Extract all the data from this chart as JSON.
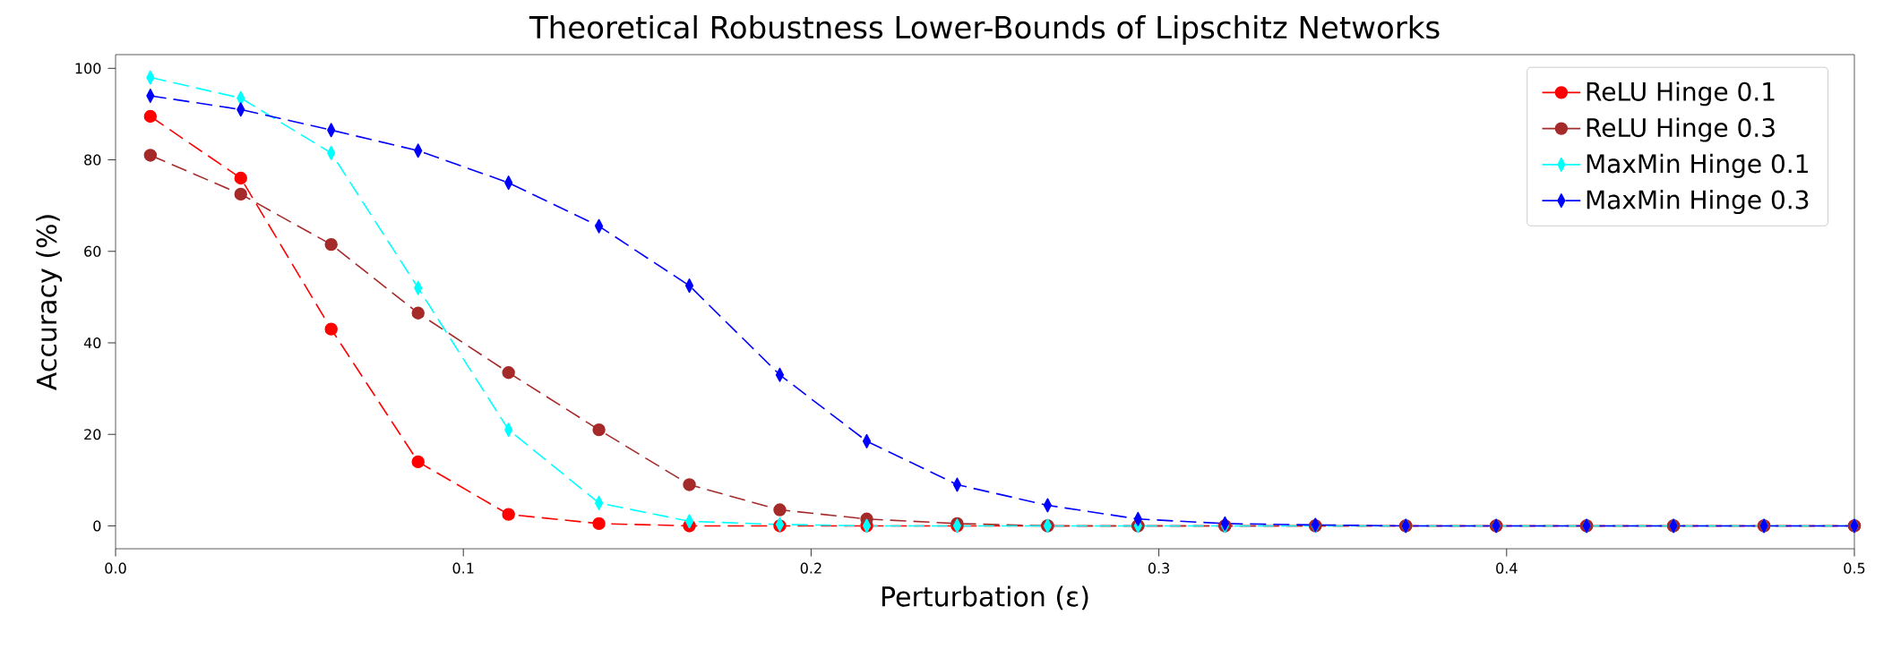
{
  "chart_data": {
    "type": "line",
    "title": "Theoretical Robustness Lower-Bounds of Lipschitz Networks",
    "xlabel": "Perturbation (ε)",
    "ylabel": "Accuracy (%)",
    "x": [
      0.01,
      0.036,
      0.062,
      0.087,
      0.113,
      0.139,
      0.165,
      0.191,
      0.216,
      0.242,
      0.268,
      0.294,
      0.319,
      0.345,
      0.371,
      0.397,
      0.423,
      0.448,
      0.474,
      0.5
    ],
    "series": [
      {
        "name": "ReLU Hinge 0.1",
        "color": "#ff0000",
        "marker": "circle",
        "values": [
          89.5,
          76,
          43,
          14,
          2.5,
          0.5,
          0,
          0,
          0,
          0,
          0,
          0,
          0,
          0,
          0,
          0,
          0,
          0,
          0,
          0
        ]
      },
      {
        "name": "ReLU Hinge 0.3",
        "color": "#a52a2a",
        "marker": "circle",
        "values": [
          81,
          72.5,
          61.5,
          46.5,
          33.5,
          21,
          9,
          3.5,
          1.5,
          0.5,
          0,
          0,
          0,
          0,
          0,
          0,
          0,
          0,
          0,
          0
        ]
      },
      {
        "name": "MaxMin Hinge 0.1",
        "color": "#00ffff",
        "marker": "diamond",
        "values": [
          98,
          93.5,
          81.5,
          52,
          21,
          5,
          1,
          0.3,
          0,
          0,
          0,
          0,
          0,
          0,
          0,
          0,
          0,
          0,
          0,
          0
        ]
      },
      {
        "name": "MaxMin Hinge 0.3",
        "color": "#0000ff",
        "marker": "diamond",
        "values": [
          94,
          91,
          86.5,
          82,
          75,
          65.5,
          52.5,
          33,
          18.5,
          9,
          4.5,
          1.5,
          0.5,
          0.2,
          0,
          0,
          0,
          0,
          0,
          0
        ]
      }
    ],
    "xlim": [
      0,
      0.5
    ],
    "ylim": [
      -5,
      103
    ],
    "xticks": [
      {
        "value": 0,
        "label": "0.0"
      },
      0.1,
      0.2,
      0.3,
      0.4,
      0.5
    ],
    "yticks": [
      0,
      20,
      40,
      60,
      80,
      100
    ],
    "line_style": "dashed",
    "legend": "top right",
    "grid": false
  }
}
